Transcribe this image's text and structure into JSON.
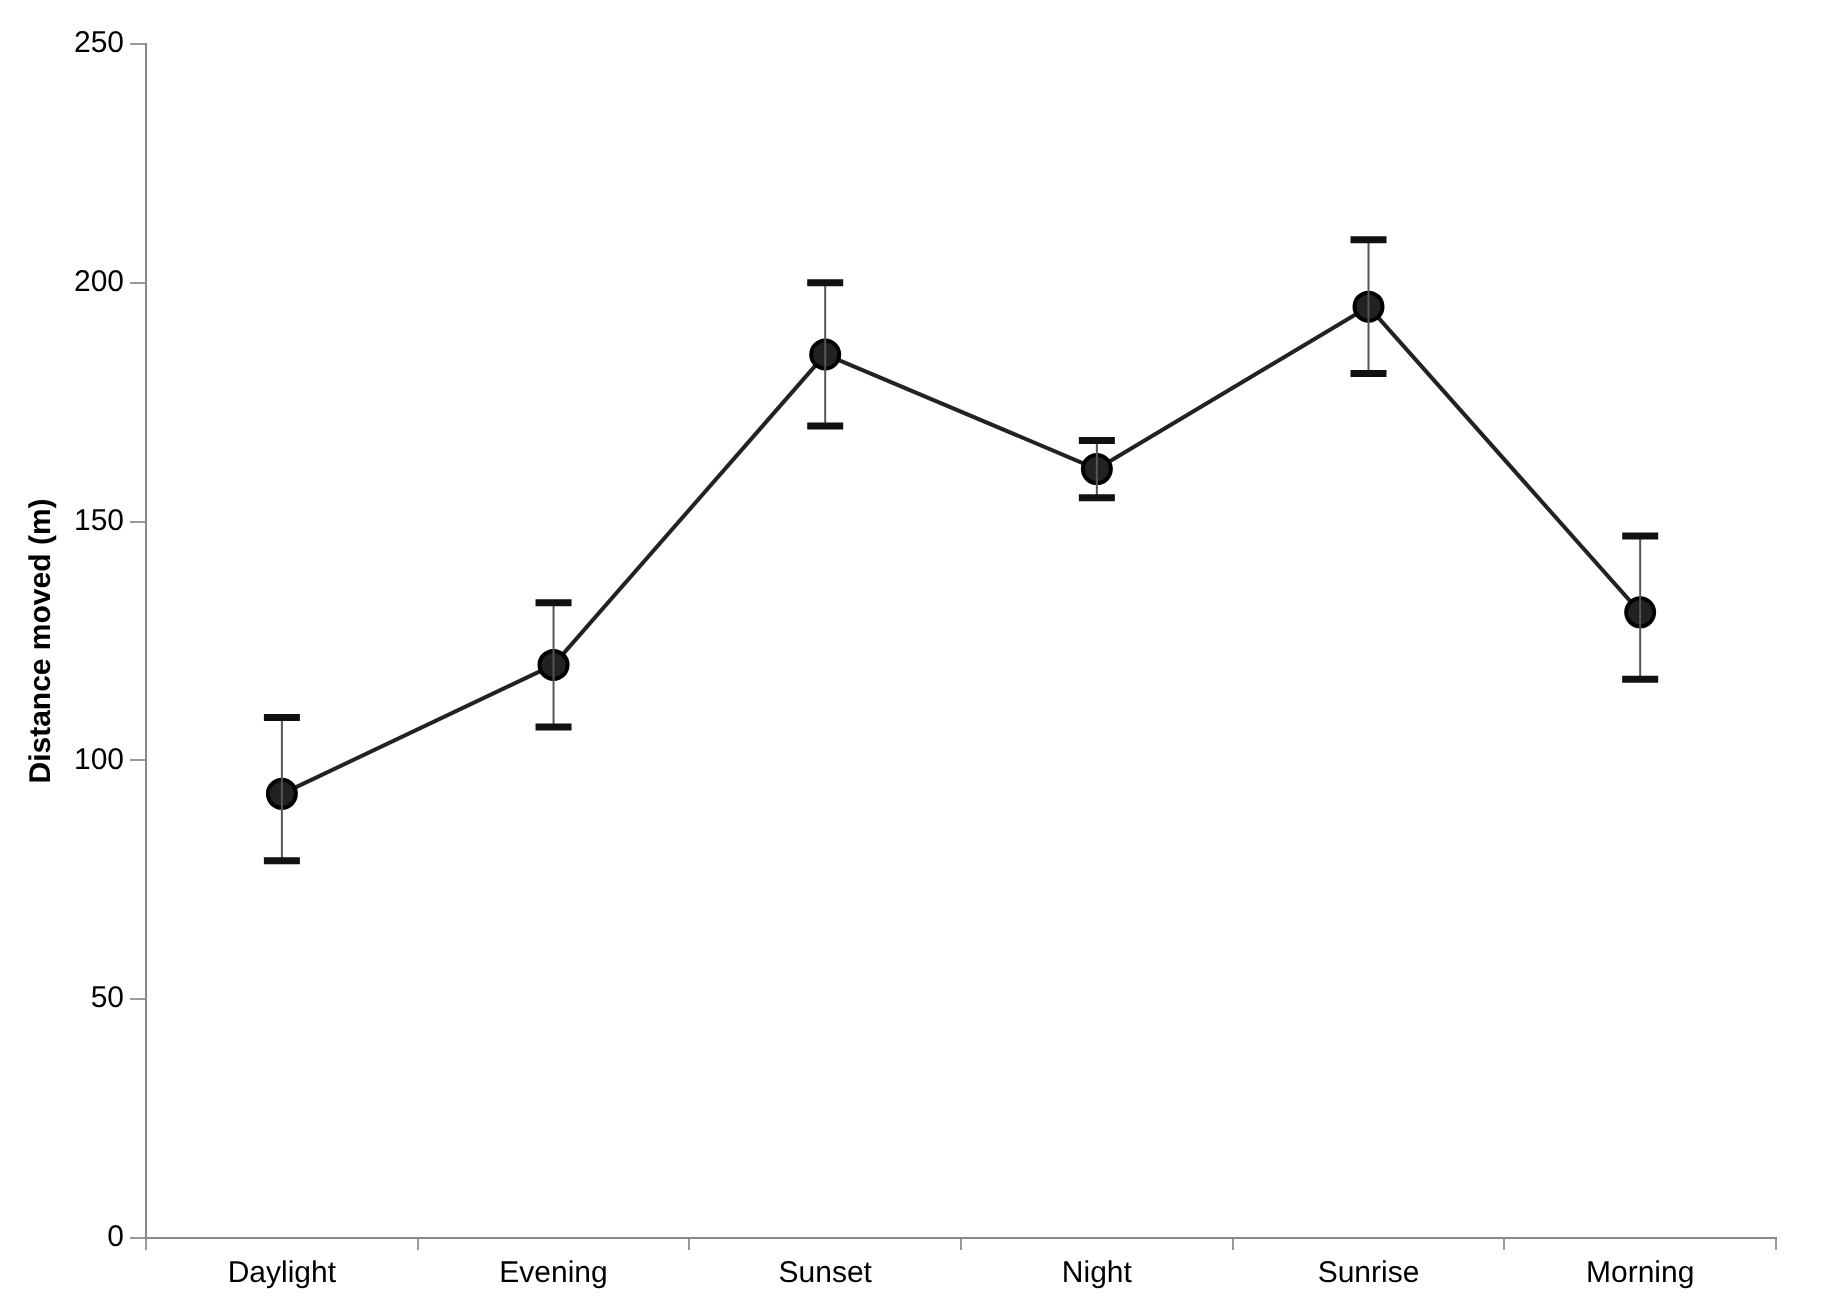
{
  "chart_data": {
    "type": "line",
    "ylabel": "Distance moved (m)",
    "categories": [
      "Daylight",
      "Evening",
      "Sunset",
      "Night",
      "Sunrise",
      "Morning"
    ],
    "series": [
      {
        "color": "#222222",
        "values": [
          93,
          120,
          185,
          161,
          195,
          131
        ],
        "errors": [
          [
            79,
            109
          ],
          [
            107,
            133
          ],
          [
            170,
            200
          ],
          [
            155,
            167
          ],
          [
            181,
            209
          ],
          [
            117,
            147
          ]
        ]
      }
    ],
    "ylim": [
      0,
      250
    ],
    "yticks": [
      0,
      50,
      100,
      150,
      200,
      250
    ],
    "grid": false,
    "legend": false,
    "marker": "circle",
    "line_style": "solid"
  }
}
